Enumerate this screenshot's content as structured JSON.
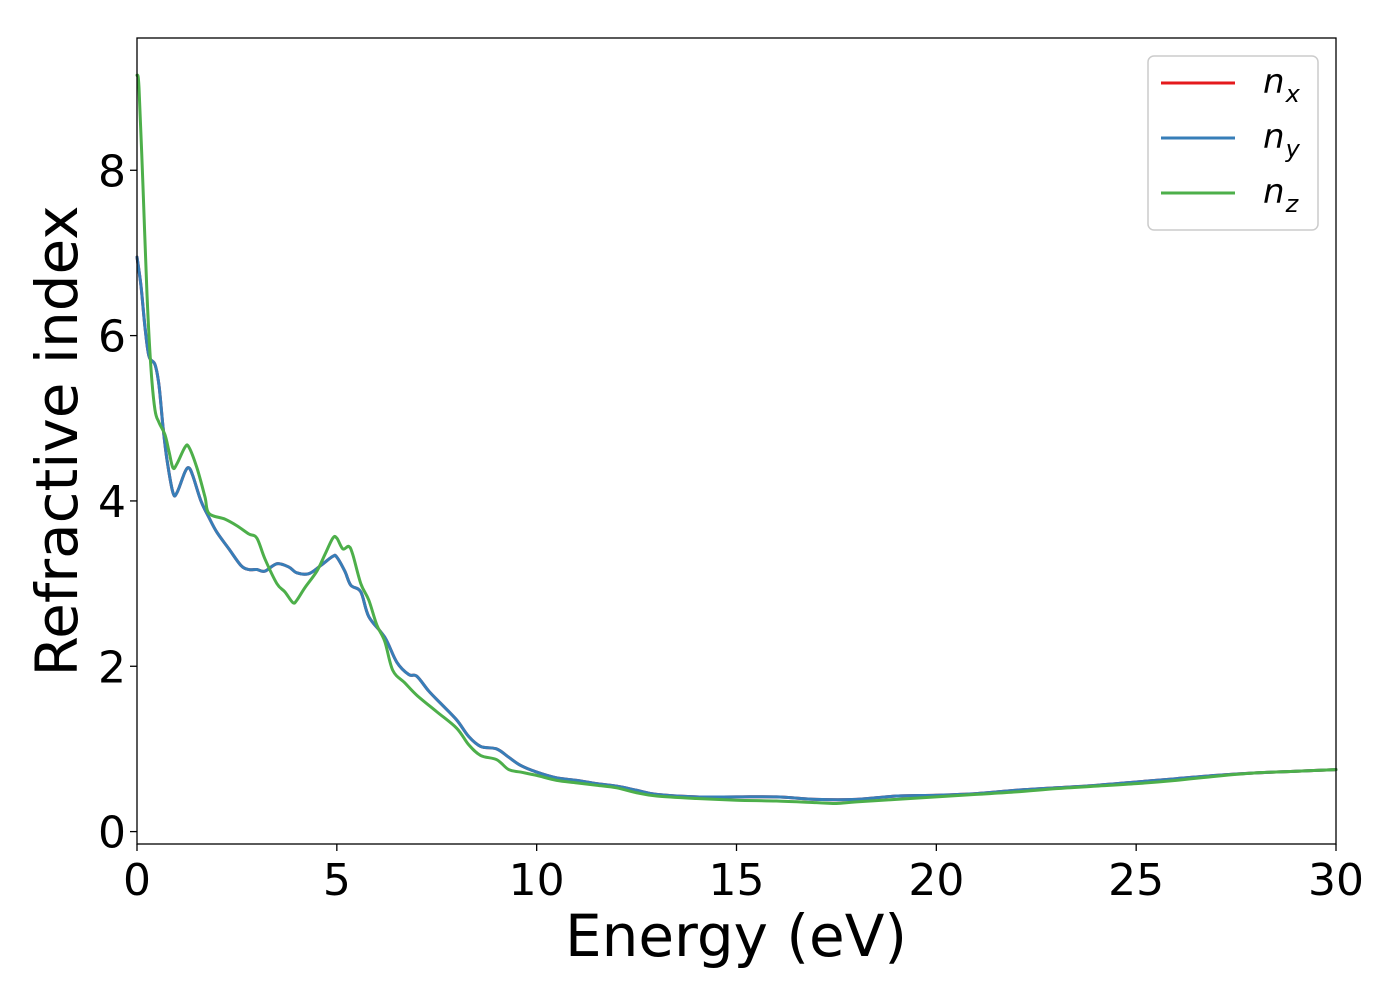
{
  "chart_data": {
    "type": "line",
    "title": "",
    "xlabel": "Energy (eV)",
    "ylabel": "Refractive index",
    "xlim": [
      0,
      30
    ],
    "ylim": [
      -0.15,
      9.6
    ],
    "xticks": [
      0,
      5,
      10,
      15,
      20,
      25,
      30
    ],
    "yticks": [
      0,
      2,
      4,
      6,
      8
    ],
    "grid": false,
    "legend_position": "top-right",
    "series": [
      {
        "name": "n_x",
        "label_base": "n",
        "label_sub": "x",
        "color": "#e41a1c",
        "points": [
          [
            0,
            6.95
          ],
          [
            0.1,
            6.6
          ],
          [
            0.2,
            6.1
          ],
          [
            0.3,
            5.75
          ],
          [
            0.45,
            5.65
          ],
          [
            0.55,
            5.4
          ],
          [
            0.65,
            4.9
          ],
          [
            0.75,
            4.5
          ],
          [
            0.9,
            4.1
          ],
          [
            1.0,
            4.1
          ],
          [
            1.2,
            4.35
          ],
          [
            1.3,
            4.4
          ],
          [
            1.4,
            4.3
          ],
          [
            1.6,
            4.0
          ],
          [
            1.8,
            3.8
          ],
          [
            2.0,
            3.62
          ],
          [
            2.3,
            3.42
          ],
          [
            2.6,
            3.22
          ],
          [
            2.8,
            3.17
          ],
          [
            3.0,
            3.17
          ],
          [
            3.2,
            3.15
          ],
          [
            3.5,
            3.24
          ],
          [
            3.8,
            3.2
          ],
          [
            4.0,
            3.13
          ],
          [
            4.3,
            3.12
          ],
          [
            4.6,
            3.22
          ],
          [
            4.9,
            3.33
          ],
          [
            5.0,
            3.32
          ],
          [
            5.2,
            3.15
          ],
          [
            5.35,
            2.98
          ],
          [
            5.6,
            2.9
          ],
          [
            5.8,
            2.6
          ],
          [
            6.2,
            2.35
          ],
          [
            6.5,
            2.05
          ],
          [
            6.8,
            1.9
          ],
          [
            7.0,
            1.88
          ],
          [
            7.3,
            1.7
          ],
          [
            7.6,
            1.55
          ],
          [
            8.0,
            1.35
          ],
          [
            8.3,
            1.15
          ],
          [
            8.6,
            1.03
          ],
          [
            9.0,
            1.0
          ],
          [
            9.3,
            0.9
          ],
          [
            9.6,
            0.8
          ],
          [
            10.0,
            0.72
          ],
          [
            10.5,
            0.65
          ],
          [
            11.0,
            0.62
          ],
          [
            11.5,
            0.58
          ],
          [
            12.0,
            0.55
          ],
          [
            12.5,
            0.5
          ],
          [
            13.0,
            0.45
          ],
          [
            14.0,
            0.42
          ],
          [
            15.0,
            0.42
          ],
          [
            16.0,
            0.42
          ],
          [
            17.0,
            0.39
          ],
          [
            18.0,
            0.39
          ],
          [
            19.0,
            0.43
          ],
          [
            20.0,
            0.44
          ],
          [
            21.0,
            0.46
          ],
          [
            22.0,
            0.5
          ],
          [
            23.0,
            0.53
          ],
          [
            24.0,
            0.56
          ],
          [
            25.0,
            0.6
          ],
          [
            26.0,
            0.64
          ],
          [
            27.0,
            0.68
          ],
          [
            28.0,
            0.71
          ],
          [
            29.0,
            0.73
          ],
          [
            30.0,
            0.75
          ]
        ]
      },
      {
        "name": "n_y",
        "label_base": "n",
        "label_sub": "y",
        "color": "#377eb8",
        "points": [
          [
            0,
            6.95
          ],
          [
            0.1,
            6.6
          ],
          [
            0.2,
            6.1
          ],
          [
            0.3,
            5.75
          ],
          [
            0.45,
            5.65
          ],
          [
            0.55,
            5.4
          ],
          [
            0.65,
            4.9
          ],
          [
            0.75,
            4.5
          ],
          [
            0.9,
            4.1
          ],
          [
            1.0,
            4.1
          ],
          [
            1.2,
            4.35
          ],
          [
            1.3,
            4.4
          ],
          [
            1.4,
            4.3
          ],
          [
            1.6,
            4.0
          ],
          [
            1.8,
            3.8
          ],
          [
            2.0,
            3.62
          ],
          [
            2.3,
            3.42
          ],
          [
            2.6,
            3.22
          ],
          [
            2.8,
            3.17
          ],
          [
            3.0,
            3.17
          ],
          [
            3.2,
            3.15
          ],
          [
            3.5,
            3.24
          ],
          [
            3.8,
            3.2
          ],
          [
            4.0,
            3.13
          ],
          [
            4.3,
            3.12
          ],
          [
            4.6,
            3.22
          ],
          [
            4.9,
            3.33
          ],
          [
            5.0,
            3.32
          ],
          [
            5.2,
            3.15
          ],
          [
            5.35,
            2.98
          ],
          [
            5.6,
            2.9
          ],
          [
            5.8,
            2.6
          ],
          [
            6.2,
            2.35
          ],
          [
            6.5,
            2.05
          ],
          [
            6.8,
            1.9
          ],
          [
            7.0,
            1.88
          ],
          [
            7.3,
            1.7
          ],
          [
            7.6,
            1.55
          ],
          [
            8.0,
            1.35
          ],
          [
            8.3,
            1.15
          ],
          [
            8.6,
            1.03
          ],
          [
            9.0,
            1.0
          ],
          [
            9.3,
            0.9
          ],
          [
            9.6,
            0.8
          ],
          [
            10.0,
            0.72
          ],
          [
            10.5,
            0.65
          ],
          [
            11.0,
            0.62
          ],
          [
            11.5,
            0.58
          ],
          [
            12.0,
            0.55
          ],
          [
            12.5,
            0.5
          ],
          [
            13.0,
            0.45
          ],
          [
            14.0,
            0.42
          ],
          [
            15.0,
            0.42
          ],
          [
            16.0,
            0.42
          ],
          [
            17.0,
            0.39
          ],
          [
            18.0,
            0.39
          ],
          [
            19.0,
            0.43
          ],
          [
            20.0,
            0.44
          ],
          [
            21.0,
            0.46
          ],
          [
            22.0,
            0.5
          ],
          [
            23.0,
            0.53
          ],
          [
            24.0,
            0.56
          ],
          [
            25.0,
            0.6
          ],
          [
            26.0,
            0.64
          ],
          [
            27.0,
            0.68
          ],
          [
            28.0,
            0.71
          ],
          [
            29.0,
            0.73
          ],
          [
            30.0,
            0.75
          ]
        ]
      },
      {
        "name": "n_z",
        "label_base": "n",
        "label_sub": "z",
        "color": "#4daf4a",
        "points": [
          [
            0,
            9.15
          ],
          [
            0.05,
            9.0
          ],
          [
            0.15,
            7.8
          ],
          [
            0.25,
            6.5
          ],
          [
            0.35,
            5.6
          ],
          [
            0.45,
            5.1
          ],
          [
            0.55,
            4.95
          ],
          [
            0.7,
            4.8
          ],
          [
            0.8,
            4.6
          ],
          [
            0.9,
            4.4
          ],
          [
            1.0,
            4.45
          ],
          [
            1.2,
            4.65
          ],
          [
            1.3,
            4.65
          ],
          [
            1.5,
            4.4
          ],
          [
            1.7,
            4.05
          ],
          [
            1.8,
            3.85
          ],
          [
            2.2,
            3.78
          ],
          [
            2.5,
            3.7
          ],
          [
            2.8,
            3.6
          ],
          [
            3.0,
            3.55
          ],
          [
            3.2,
            3.3
          ],
          [
            3.5,
            3.0
          ],
          [
            3.7,
            2.9
          ],
          [
            3.9,
            2.77
          ],
          [
            4.0,
            2.8
          ],
          [
            4.2,
            2.95
          ],
          [
            4.5,
            3.15
          ],
          [
            4.7,
            3.35
          ],
          [
            4.9,
            3.55
          ],
          [
            5.0,
            3.55
          ],
          [
            5.15,
            3.42
          ],
          [
            5.3,
            3.45
          ],
          [
            5.4,
            3.35
          ],
          [
            5.6,
            3.0
          ],
          [
            5.8,
            2.8
          ],
          [
            6.0,
            2.5
          ],
          [
            6.2,
            2.3
          ],
          [
            6.4,
            1.95
          ],
          [
            6.7,
            1.8
          ],
          [
            7.0,
            1.65
          ],
          [
            7.5,
            1.45
          ],
          [
            8.0,
            1.25
          ],
          [
            8.3,
            1.05
          ],
          [
            8.6,
            0.92
          ],
          [
            9.0,
            0.87
          ],
          [
            9.3,
            0.75
          ],
          [
            9.6,
            0.72
          ],
          [
            10.0,
            0.68
          ],
          [
            10.5,
            0.62
          ],
          [
            11.0,
            0.59
          ],
          [
            11.5,
            0.56
          ],
          [
            12.0,
            0.53
          ],
          [
            12.5,
            0.47
          ],
          [
            13.0,
            0.43
          ],
          [
            14.0,
            0.4
          ],
          [
            15.0,
            0.38
          ],
          [
            16.0,
            0.37
          ],
          [
            17.0,
            0.35
          ],
          [
            17.5,
            0.34
          ],
          [
            18.0,
            0.36
          ],
          [
            19.0,
            0.39
          ],
          [
            20.0,
            0.42
          ],
          [
            21.0,
            0.45
          ],
          [
            22.0,
            0.48
          ],
          [
            23.0,
            0.52
          ],
          [
            24.0,
            0.55
          ],
          [
            25.0,
            0.58
          ],
          [
            26.0,
            0.62
          ],
          [
            27.0,
            0.67
          ],
          [
            28.0,
            0.71
          ],
          [
            29.0,
            0.73
          ],
          [
            30.0,
            0.75
          ]
        ]
      }
    ]
  }
}
